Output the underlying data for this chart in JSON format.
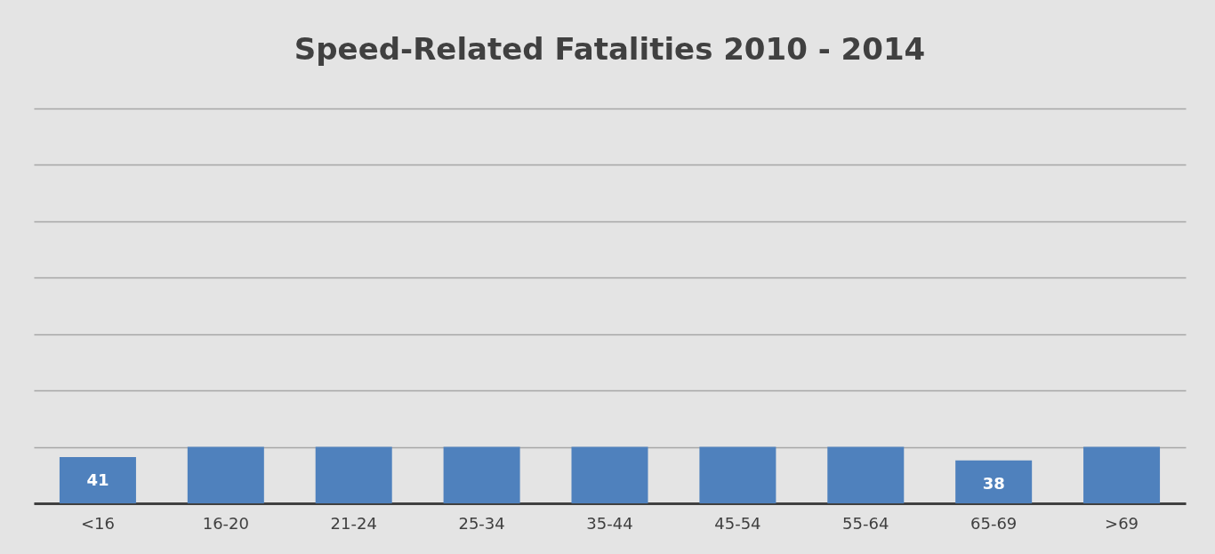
{
  "chart_data": {
    "type": "bar",
    "title": "Speed-Related Fatalities 2010 - 2014",
    "categories": [
      "<16",
      "16-20",
      "21-24",
      "25-34",
      "35-44",
      "45-54",
      "55-64",
      "65-69",
      ">69"
    ],
    "values": [
      41,
      50,
      50,
      50,
      50,
      50,
      50,
      38,
      50
    ],
    "value_labels": [
      "41",
      null,
      null,
      null,
      null,
      null,
      null,
      "38",
      null
    ],
    "color": "#4f81bd",
    "ylim": [
      0,
      350
    ],
    "yticks": [
      {
        "value": 0,
        "label": null
      },
      {
        "value": 50,
        "label": null
      },
      {
        "value": 100,
        "label": null
      },
      {
        "value": 150,
        "label": null
      },
      {
        "value": 200,
        "label": null
      },
      {
        "value": 250,
        "label": null
      },
      {
        "value": 300,
        "label": null
      },
      {
        "value": 350,
        "label": null
      }
    ],
    "tick_labels": "x",
    "grid": "y"
  }
}
